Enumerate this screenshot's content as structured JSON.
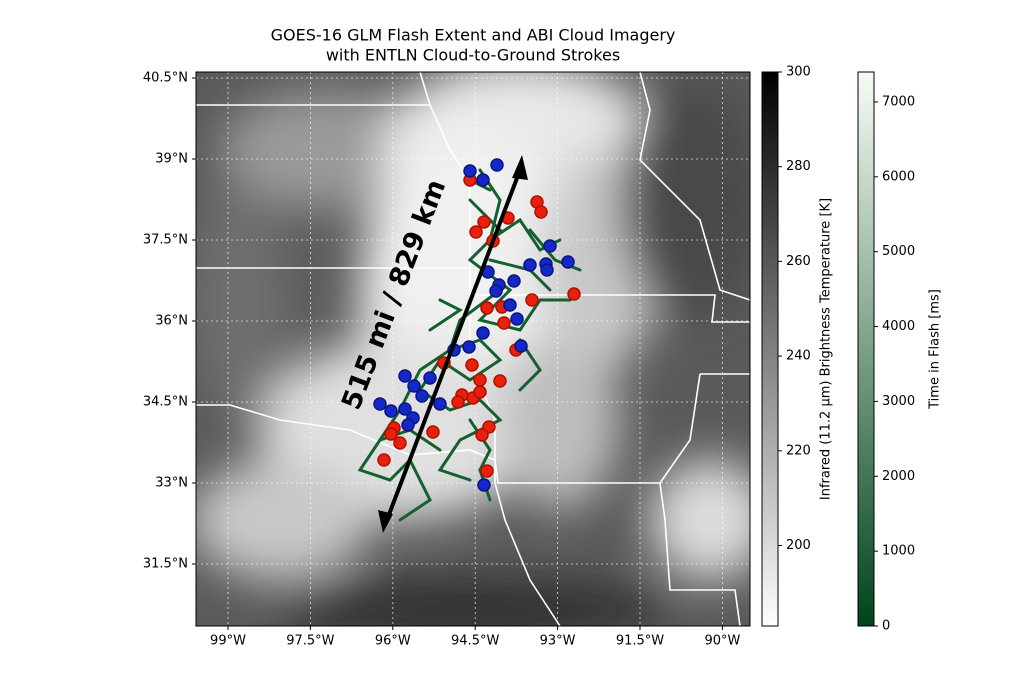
{
  "title": [
    "GOES-16 GLM Flash Extent and ABI Cloud Imagery",
    "with ENTLN Cloud-to-Ground Strokes"
  ],
  "map": {
    "lat_labels": [
      "40.5°N",
      "39°N",
      "37.5°N",
      "36°N",
      "34.5°N",
      "33°N",
      "31.5°N"
    ],
    "lon_labels": [
      "99°W",
      "97.5°W",
      "96°W",
      "94.5°W",
      "93°W",
      "91.5°W",
      "90°W"
    ],
    "annotation": "515 mi / 829 km"
  },
  "colorbars": [
    {
      "label": "Infrared (11.2 μm) Brightness Temperature [K]",
      "lim": [
        183,
        300
      ],
      "ticks": [
        200,
        220,
        240,
        260,
        280,
        300
      ],
      "colors": [
        "#ffffff",
        "#000000"
      ]
    },
    {
      "label": "Time in Flash [ms]",
      "lim": [
        0,
        7400
      ],
      "ticks": [
        0,
        1000,
        2000,
        3000,
        4000,
        5000,
        6000,
        7000
      ],
      "colors": [
        "#00441b",
        "#f7fcf5"
      ]
    }
  ]
}
